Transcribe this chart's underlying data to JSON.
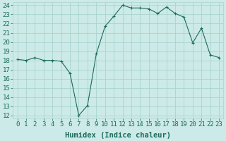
{
  "x": [
    0,
    1,
    2,
    3,
    4,
    5,
    6,
    7,
    8,
    9,
    10,
    11,
    12,
    13,
    14,
    15,
    16,
    17,
    18,
    19,
    20,
    21,
    22,
    23
  ],
  "y": [
    18.1,
    18.0,
    18.3,
    18.0,
    18.0,
    17.9,
    16.6,
    12.0,
    13.1,
    18.7,
    21.7,
    22.8,
    24.0,
    23.7,
    23.7,
    23.6,
    23.1,
    23.8,
    23.1,
    22.7,
    19.9,
    21.5,
    18.6,
    18.3
  ],
  "xlabel": "Humidex (Indice chaleur)",
  "ylim": [
    12,
    24
  ],
  "xlim": [
    -0.5,
    23.5
  ],
  "yticks": [
    12,
    13,
    14,
    15,
    16,
    17,
    18,
    19,
    20,
    21,
    22,
    23,
    24
  ],
  "xticks": [
    0,
    1,
    2,
    3,
    4,
    5,
    6,
    7,
    8,
    9,
    10,
    11,
    12,
    13,
    14,
    15,
    16,
    17,
    18,
    19,
    20,
    21,
    22,
    23
  ],
  "line_color": "#1a6b5a",
  "marker": "+",
  "bg_color": "#cceae7",
  "grid_color": "#aad4d0",
  "tick_color": "#1a6b5a",
  "label_fontsize": 6.5,
  "xlabel_fontsize": 7.5
}
